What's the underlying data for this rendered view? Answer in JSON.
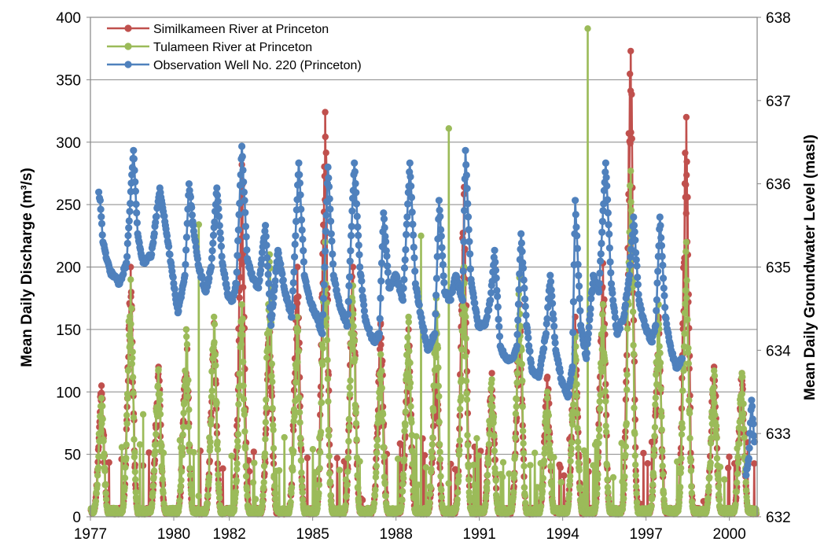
{
  "chart_data": {
    "type": "line",
    "title": "",
    "xlabel": "",
    "ylabel": "Mean Daily Discharge (m³/s)",
    "y2label": "Mean Daily Groundwater Level (masl)",
    "xlim": [
      1977,
      2001
    ],
    "ylim": [
      0,
      400
    ],
    "y2lim": [
      632,
      638
    ],
    "x_ticks": [
      1977,
      1980,
      1982,
      1985,
      1988,
      1991,
      1994,
      1997,
      2000
    ],
    "x_tick_labels": [
      "1977",
      "1980",
      "1982",
      "1985",
      "1988",
      "1991",
      "1994",
      "1997",
      "2000"
    ],
    "y_ticks": [
      0,
      50,
      100,
      150,
      200,
      250,
      300,
      350,
      400
    ],
    "y2_ticks": [
      632,
      633,
      634,
      635,
      636,
      637,
      638
    ],
    "grid": "horizontal",
    "legend_position": "top-left",
    "series": [
      {
        "name": "Similkameen River at Princeton",
        "color": "#c0504d",
        "axis": "left",
        "peaks": [
          {
            "x": 1977.4,
            "y": 105
          },
          {
            "x": 1978.45,
            "y": 200
          },
          {
            "x": 1979.45,
            "y": 120
          },
          {
            "x": 1980.45,
            "y": 150
          },
          {
            "x": 1981.45,
            "y": 155
          },
          {
            "x": 1982.45,
            "y": 282
          },
          {
            "x": 1983.45,
            "y": 160
          },
          {
            "x": 1984.45,
            "y": 200
          },
          {
            "x": 1985.45,
            "y": 324
          },
          {
            "x": 1986.45,
            "y": 200
          },
          {
            "x": 1987.45,
            "y": 155
          },
          {
            "x": 1988.45,
            "y": 150
          },
          {
            "x": 1989.45,
            "y": 117
          },
          {
            "x": 1990.45,
            "y": 264
          },
          {
            "x": 1991.45,
            "y": 115
          },
          {
            "x": 1992.45,
            "y": 170
          },
          {
            "x": 1993.45,
            "y": 112
          },
          {
            "x": 1994.45,
            "y": 160
          },
          {
            "x": 1995.45,
            "y": 203
          },
          {
            "x": 1996.45,
            "y": 373
          },
          {
            "x": 1997.45,
            "y": 160
          },
          {
            "x": 1998.45,
            "y": 320
          },
          {
            "x": 1999.45,
            "y": 120
          },
          {
            "x": 2000.45,
            "y": 115
          }
        ]
      },
      {
        "name": "Tulameen River at Princeton",
        "color": "#9bbb59",
        "axis": "left",
        "peaks": [
          {
            "x": 1977.4,
            "y": 95
          },
          {
            "x": 1978.45,
            "y": 190
          },
          {
            "x": 1979.45,
            "y": 118
          },
          {
            "x": 1980.45,
            "y": 150
          },
          {
            "x": 1981.45,
            "y": 160
          },
          {
            "x": 1982.45,
            "y": 170
          },
          {
            "x": 1983.45,
            "y": 210
          },
          {
            "x": 1984.45,
            "y": 160
          },
          {
            "x": 1985.45,
            "y": 220
          },
          {
            "x": 1986.45,
            "y": 185
          },
          {
            "x": 1987.45,
            "y": 130
          },
          {
            "x": 1988.45,
            "y": 160
          },
          {
            "x": 1989.45,
            "y": 175
          },
          {
            "x": 1990.45,
            "y": 200
          },
          {
            "x": 1991.45,
            "y": 110
          },
          {
            "x": 1992.45,
            "y": 193
          },
          {
            "x": 1993.45,
            "y": 100
          },
          {
            "x": 1994.45,
            "y": 145
          },
          {
            "x": 1995.45,
            "y": 170
          },
          {
            "x": 1996.45,
            "y": 277
          },
          {
            "x": 1997.45,
            "y": 170
          },
          {
            "x": 1998.45,
            "y": 220
          },
          {
            "x": 1999.45,
            "y": 117
          },
          {
            "x": 2000.45,
            "y": 115
          }
        ],
        "spikes": [
          {
            "x": 1978.9,
            "y": 82
          },
          {
            "x": 1980.9,
            "y": 234
          },
          {
            "x": 1988.9,
            "y": 225
          },
          {
            "x": 1989.9,
            "y": 311
          },
          {
            "x": 1994.9,
            "y": 391
          }
        ]
      },
      {
        "name": "Observation Well No. 220 (Princeton)",
        "color": "#4f81bd",
        "axis": "right",
        "points": [
          {
            "x": 1977.3,
            "y": 635.9
          },
          {
            "x": 1977.35,
            "y": 635.8
          },
          {
            "x": 1977.45,
            "y": 635.3
          },
          {
            "x": 1977.7,
            "y": 634.95
          },
          {
            "x": 1978.05,
            "y": 634.8
          },
          {
            "x": 1978.3,
            "y": 635.05
          },
          {
            "x": 1978.55,
            "y": 636.4
          },
          {
            "x": 1978.7,
            "y": 635.4
          },
          {
            "x": 1978.9,
            "y": 635.05
          },
          {
            "x": 1979.2,
            "y": 635.15
          },
          {
            "x": 1979.5,
            "y": 635.95
          },
          {
            "x": 1979.7,
            "y": 635.5
          },
          {
            "x": 1979.9,
            "y": 635.05
          },
          {
            "x": 1980.15,
            "y": 634.45
          },
          {
            "x": 1980.4,
            "y": 634.9
          },
          {
            "x": 1980.55,
            "y": 636.0
          },
          {
            "x": 1980.7,
            "y": 635.5
          },
          {
            "x": 1980.9,
            "y": 635.0
          },
          {
            "x": 1981.15,
            "y": 634.7
          },
          {
            "x": 1981.35,
            "y": 635.0
          },
          {
            "x": 1981.55,
            "y": 635.95
          },
          {
            "x": 1981.75,
            "y": 635.05
          },
          {
            "x": 1981.95,
            "y": 634.65
          },
          {
            "x": 1982.1,
            "y": 634.6
          },
          {
            "x": 1982.25,
            "y": 634.8
          },
          {
            "x": 1982.45,
            "y": 636.45
          },
          {
            "x": 1982.65,
            "y": 635.1
          },
          {
            "x": 1982.85,
            "y": 634.85
          },
          {
            "x": 1983.05,
            "y": 634.75
          },
          {
            "x": 1983.3,
            "y": 635.5
          },
          {
            "x": 1983.5,
            "y": 634.3
          },
          {
            "x": 1983.75,
            "y": 635.2
          },
          {
            "x": 1984.0,
            "y": 634.7
          },
          {
            "x": 1984.25,
            "y": 634.4
          },
          {
            "x": 1984.5,
            "y": 636.25
          },
          {
            "x": 1984.7,
            "y": 634.9
          },
          {
            "x": 1984.95,
            "y": 634.55
          },
          {
            "x": 1985.15,
            "y": 634.4
          },
          {
            "x": 1985.35,
            "y": 634.2
          },
          {
            "x": 1985.55,
            "y": 636.2
          },
          {
            "x": 1985.75,
            "y": 634.9
          },
          {
            "x": 1986.0,
            "y": 634.5
          },
          {
            "x": 1986.25,
            "y": 634.3
          },
          {
            "x": 1986.5,
            "y": 636.25
          },
          {
            "x": 1986.7,
            "y": 635.0
          },
          {
            "x": 1986.9,
            "y": 634.35
          },
          {
            "x": 1987.2,
            "y": 634.1
          },
          {
            "x": 1987.4,
            "y": 634.2
          },
          {
            "x": 1987.55,
            "y": 635.65
          },
          {
            "x": 1987.75,
            "y": 634.75
          },
          {
            "x": 1988.0,
            "y": 634.9
          },
          {
            "x": 1988.25,
            "y": 634.6
          },
          {
            "x": 1988.5,
            "y": 636.25
          },
          {
            "x": 1988.7,
            "y": 634.8
          },
          {
            "x": 1988.9,
            "y": 634.4
          },
          {
            "x": 1989.15,
            "y": 634.0
          },
          {
            "x": 1989.4,
            "y": 634.2
          },
          {
            "x": 1989.55,
            "y": 635.8
          },
          {
            "x": 1989.75,
            "y": 634.7
          },
          {
            "x": 1989.95,
            "y": 634.6
          },
          {
            "x": 1990.15,
            "y": 634.9
          },
          {
            "x": 1990.4,
            "y": 634.6
          },
          {
            "x": 1990.5,
            "y": 636.4
          },
          {
            "x": 1990.7,
            "y": 634.85
          },
          {
            "x": 1990.95,
            "y": 634.3
          },
          {
            "x": 1991.2,
            "y": 634.3
          },
          {
            "x": 1991.4,
            "y": 634.6
          },
          {
            "x": 1991.55,
            "y": 635.2
          },
          {
            "x": 1991.75,
            "y": 634.05
          },
          {
            "x": 1991.95,
            "y": 633.9
          },
          {
            "x": 1992.2,
            "y": 633.9
          },
          {
            "x": 1992.35,
            "y": 634.05
          },
          {
            "x": 1992.5,
            "y": 635.4
          },
          {
            "x": 1992.7,
            "y": 634.3
          },
          {
            "x": 1992.9,
            "y": 633.75
          },
          {
            "x": 1993.15,
            "y": 633.7
          },
          {
            "x": 1993.4,
            "y": 634.2
          },
          {
            "x": 1993.55,
            "y": 634.9
          },
          {
            "x": 1993.75,
            "y": 634.0
          },
          {
            "x": 1993.95,
            "y": 633.65
          },
          {
            "x": 1994.2,
            "y": 633.45
          },
          {
            "x": 1994.35,
            "y": 633.8
          },
          {
            "x": 1994.45,
            "y": 635.8
          },
          {
            "x": 1994.65,
            "y": 634.3
          },
          {
            "x": 1994.85,
            "y": 633.9
          },
          {
            "x": 1995.1,
            "y": 634.9
          },
          {
            "x": 1995.3,
            "y": 634.7
          },
          {
            "x": 1995.55,
            "y": 636.25
          },
          {
            "x": 1995.75,
            "y": 634.8
          },
          {
            "x": 1995.95,
            "y": 634.2
          },
          {
            "x": 1996.2,
            "y": 634.4
          },
          {
            "x": 1996.4,
            "y": 634.9
          },
          {
            "x": 1996.55,
            "y": 635.6
          },
          {
            "x": 1996.75,
            "y": 634.6
          },
          {
            "x": 1996.95,
            "y": 634.3
          },
          {
            "x": 1997.2,
            "y": 634.1
          },
          {
            "x": 1997.35,
            "y": 634.3
          },
          {
            "x": 1997.5,
            "y": 635.6
          },
          {
            "x": 1997.7,
            "y": 634.4
          },
          {
            "x": 1997.9,
            "y": 634.0
          },
          {
            "x": 1998.1,
            "y": 633.8
          },
          {
            "x": 1998.3,
            "y": 633.9
          },
          {
            "x": 2000.6,
            "y": 632.5
          },
          {
            "x": 2000.7,
            "y": 632.7
          },
          {
            "x": 2000.8,
            "y": 633.4
          },
          {
            "x": 2000.9,
            "y": 632.9
          }
        ]
      }
    ]
  }
}
